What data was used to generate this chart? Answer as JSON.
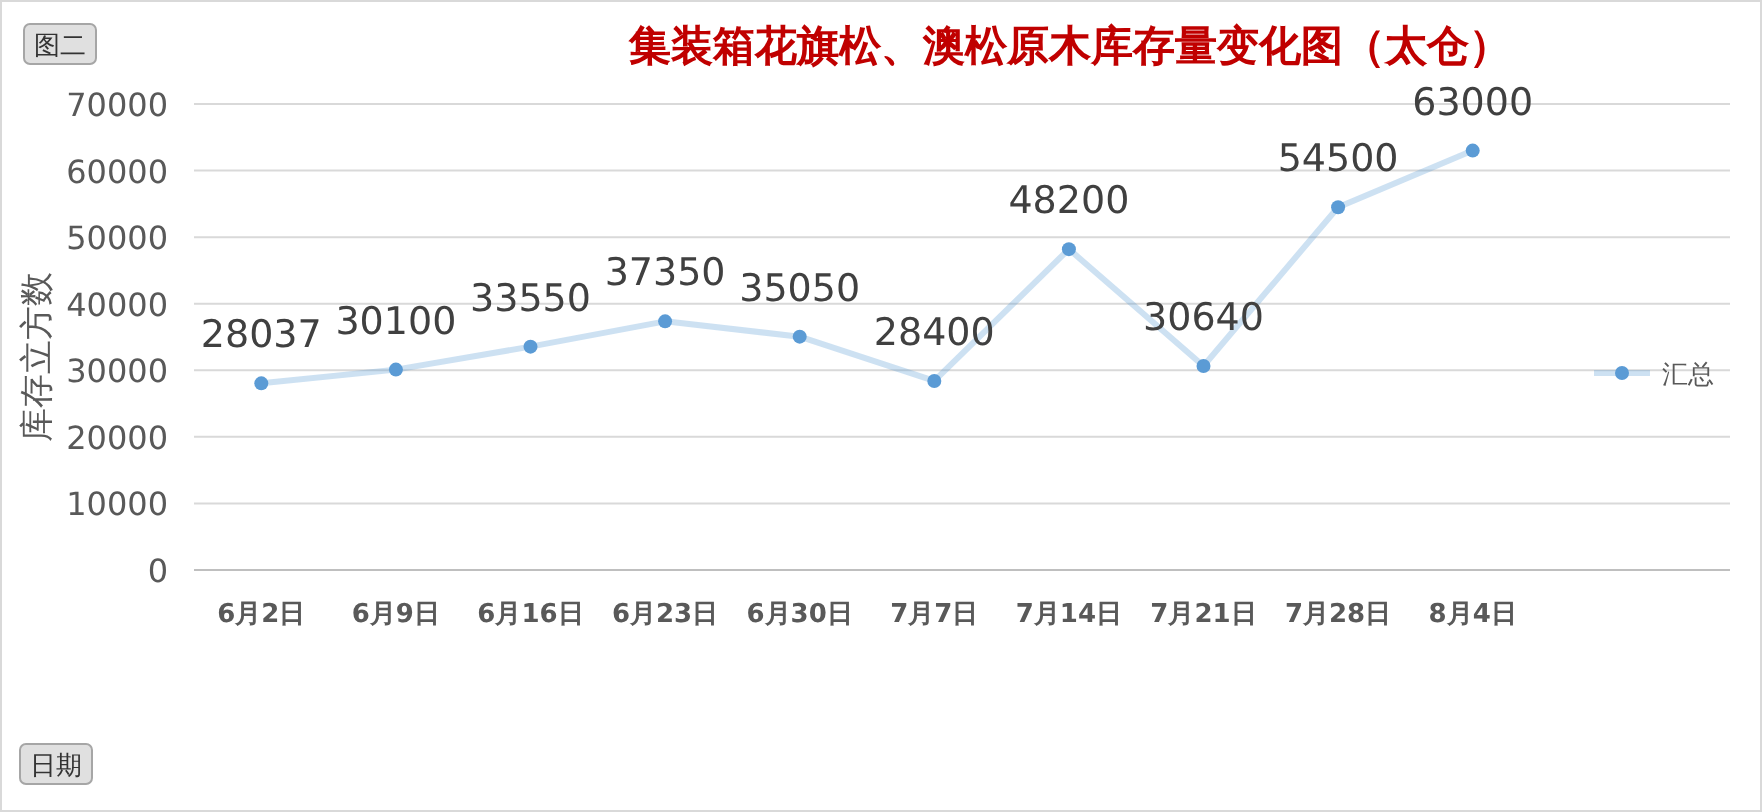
{
  "chart_data": {
    "type": "line",
    "title": "集装箱花旗松、澳松原木库存量变化图（太仓）",
    "ylabel": "库存立方数",
    "annotations": [
      "图二",
      "日期"
    ],
    "categories": [
      "6月2日",
      "6月9日",
      "6月16日",
      "6月23日",
      "6月30日",
      "7月7日",
      "7月14日",
      "7月21日",
      "7月28日",
      "8月4日"
    ],
    "series": [
      {
        "name": "汇总",
        "color": "#5b9bd5",
        "values": [
          28037,
          30100,
          33550,
          37350,
          35050,
          28400,
          48200,
          30640,
          54500,
          63000
        ]
      }
    ],
    "ylim": [
      0,
      70000
    ],
    "yticks": [
      0,
      10000,
      20000,
      30000,
      40000,
      50000,
      60000,
      70000
    ],
    "grid": "y",
    "legend": "right",
    "data_labels": true,
    "marker": "circle"
  }
}
